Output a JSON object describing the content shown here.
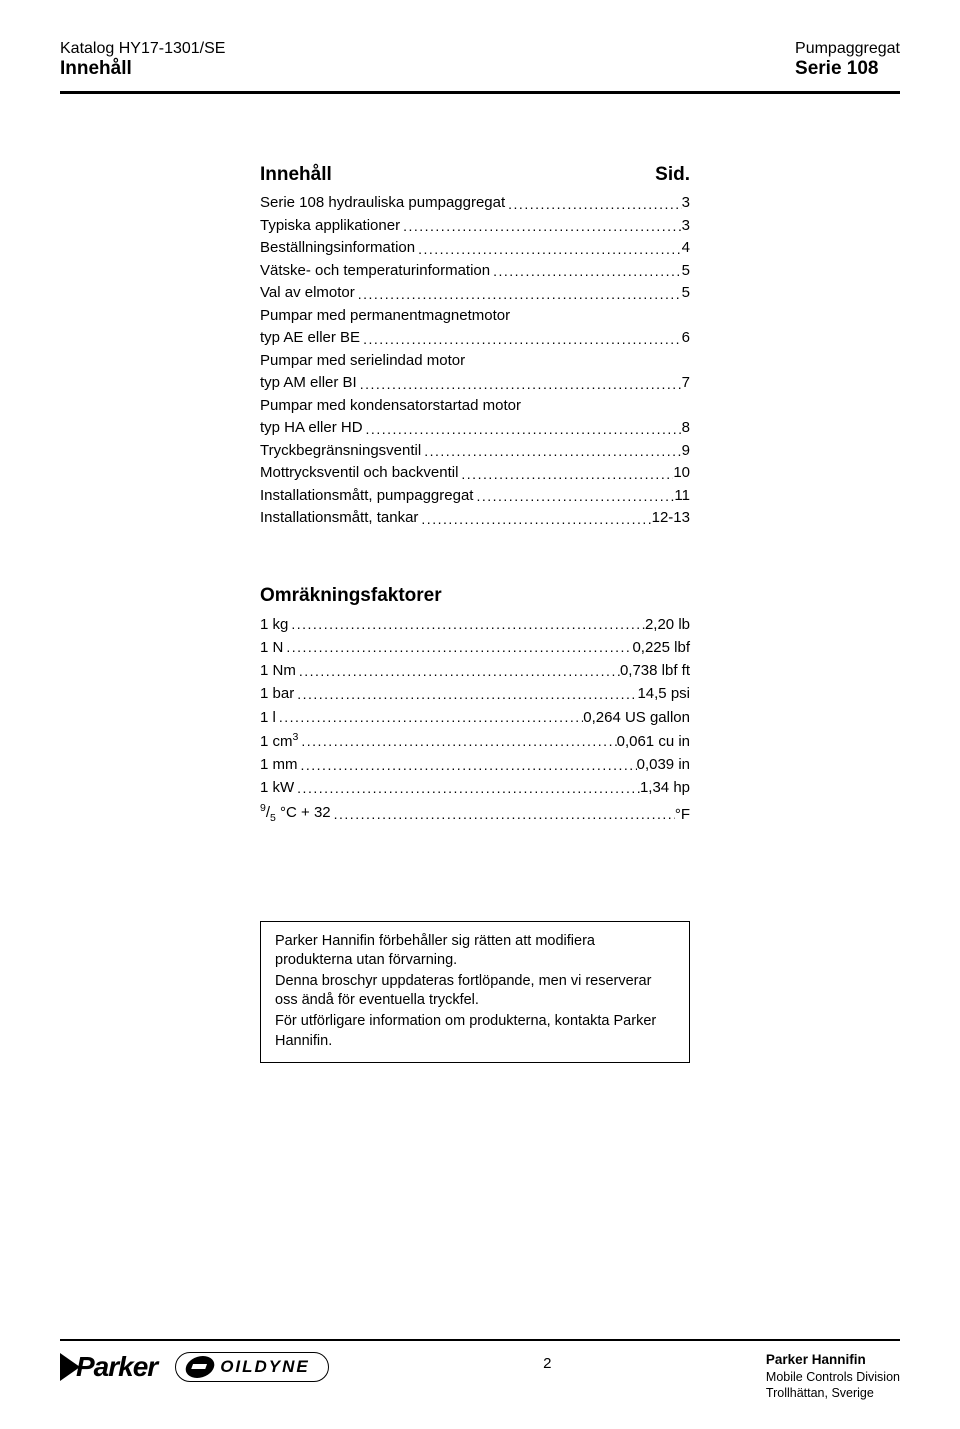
{
  "header": {
    "left_line1": "Katalog HY17-1301/SE",
    "left_line2": "Innehåll",
    "right_line1": "Pumpaggregat",
    "right_line2": "Serie 108"
  },
  "toc": {
    "heading_left": "Innehåll",
    "heading_right": "Sid.",
    "items": [
      {
        "text": "Serie 108 hydrauliska pumpaggregat",
        "page": "3"
      },
      {
        "text": "Typiska applikationer",
        "page": "3"
      },
      {
        "text": "Beställningsinformation",
        "page": "4"
      },
      {
        "text": "Vätske- och temperaturinformation",
        "page": "5"
      },
      {
        "text": "Val av elmotor",
        "page": "5"
      },
      {
        "text": "Pumpar med permanentmagnetmotor",
        "sub": "typ AE eller BE",
        "page": "6"
      },
      {
        "text": "Pumpar med serielindad motor",
        "sub": "typ AM eller BI",
        "page": "7"
      },
      {
        "text": "Pumpar med kondensatorstartad motor",
        "sub": "typ HA eller HD",
        "page": "8"
      },
      {
        "text": "Tryckbegränsningsventil",
        "page": "9"
      },
      {
        "text": "Mottrycksventil och backventil",
        "page": "10"
      },
      {
        "text": "Installationsmått, pumpaggregat",
        "page": "11"
      },
      {
        "text": "Installationsmått, tankar",
        "page": "12-13"
      }
    ]
  },
  "conversion": {
    "title": "Omräkningsfaktorer",
    "items": [
      {
        "left": "1 kg",
        "right": "2,20 lb"
      },
      {
        "left": "1 N",
        "right": "0,225 lbf"
      },
      {
        "left": "1 Nm",
        "right": "0,738 lbf ft"
      },
      {
        "left": "1 bar",
        "right": "14,5 psi"
      },
      {
        "left": "1 l",
        "right": "0,264 US gallon"
      },
      {
        "left_html": "1 cm<sup>3</sup>",
        "right": "0,061 cu in"
      },
      {
        "left": "1 mm",
        "right": "0,039 in"
      },
      {
        "left": "1 kW",
        "right": "1,34 hp"
      },
      {
        "left_html": "<sup>9</sup>/<sub>5</sub> °C + 32",
        "right": "°F"
      }
    ]
  },
  "disclaimer": {
    "p1": "Parker Hannifin förbehåller sig rätten att modifiera produkterna utan förvarning.",
    "p2": "Denna broschyr uppdateras fortlöpande, men vi reserverar oss ändå för eventuella tryckfel.",
    "p3": "För utförligare information om produkterna, kontakta Parker Hannifin."
  },
  "footer": {
    "page_number": "2",
    "parker_logo_text": "Parker",
    "oildyne_logo_text": "OILDYNE",
    "company": "Parker Hannifin",
    "division": "Mobile Controls Division",
    "location": "Trollhättan, Sverige"
  }
}
